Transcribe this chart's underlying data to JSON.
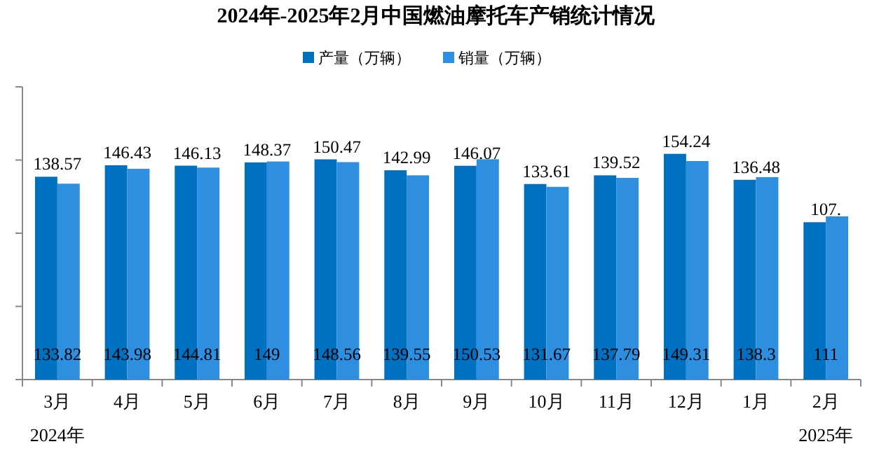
{
  "chart_data": {
    "type": "bar",
    "title": "2024年-2025年2月中国燃油摩托车产销统计情况",
    "categories": [
      "3月",
      "4月",
      "5月",
      "6月",
      "7月",
      "8月",
      "9月",
      "10月",
      "11月",
      "12月",
      "1月",
      "2月"
    ],
    "series": [
      {
        "name": "产量（万辆）",
        "color": "#0070c0",
        "values": [
          138.57,
          146.43,
          146.13,
          148.37,
          150.47,
          142.99,
          146.07,
          133.61,
          139.52,
          154.24,
          136.48,
          107.5
        ],
        "value_labels": [
          "138.57",
          "146.43",
          "146.13",
          "148.37",
          "150.47",
          "142.99",
          "146.07",
          "133.61",
          "139.52",
          "154.24",
          "136.48",
          "107."
        ]
      },
      {
        "name": "销量（万辆）",
        "color": "#2e8fe0",
        "values": [
          133.82,
          143.98,
          144.81,
          149,
          148.56,
          139.55,
          150.53,
          131.67,
          137.79,
          149.31,
          138.3,
          111.5
        ],
        "value_labels": [
          "133.82",
          "143.98",
          "144.81",
          "149",
          "148.56",
          "139.55",
          "150.53",
          "131.67",
          "137.79",
          "149.31",
          "138.3",
          "111"
        ]
      }
    ],
    "ylim": [
      0,
      200
    ],
    "yticks": [
      {
        "value": 0,
        "label": null
      },
      {
        "value": 50,
        "label": null
      },
      {
        "value": 100,
        "label": null
      },
      {
        "value": 150,
        "label": null
      },
      {
        "value": 200,
        "label": null
      }
    ],
    "tick_labels": "x",
    "legend": "top",
    "grid": false,
    "annotations": [
      "2024年",
      "2025年"
    ]
  }
}
